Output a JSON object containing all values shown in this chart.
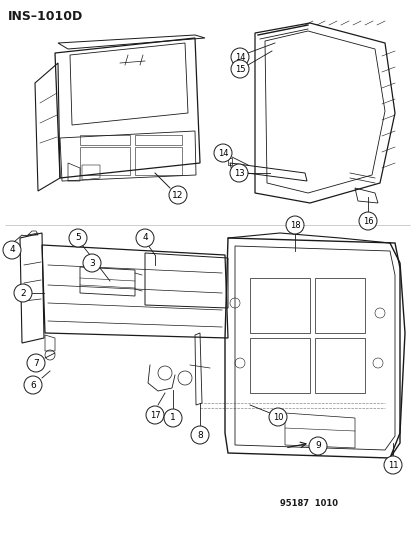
{
  "title": "INS–1010D",
  "footer": "95187  1010",
  "bg_color": "#ffffff",
  "fig_width": 4.15,
  "fig_height": 5.33,
  "dpi": 100,
  "line_color": "#1a1a1a",
  "label_color": "#000000"
}
